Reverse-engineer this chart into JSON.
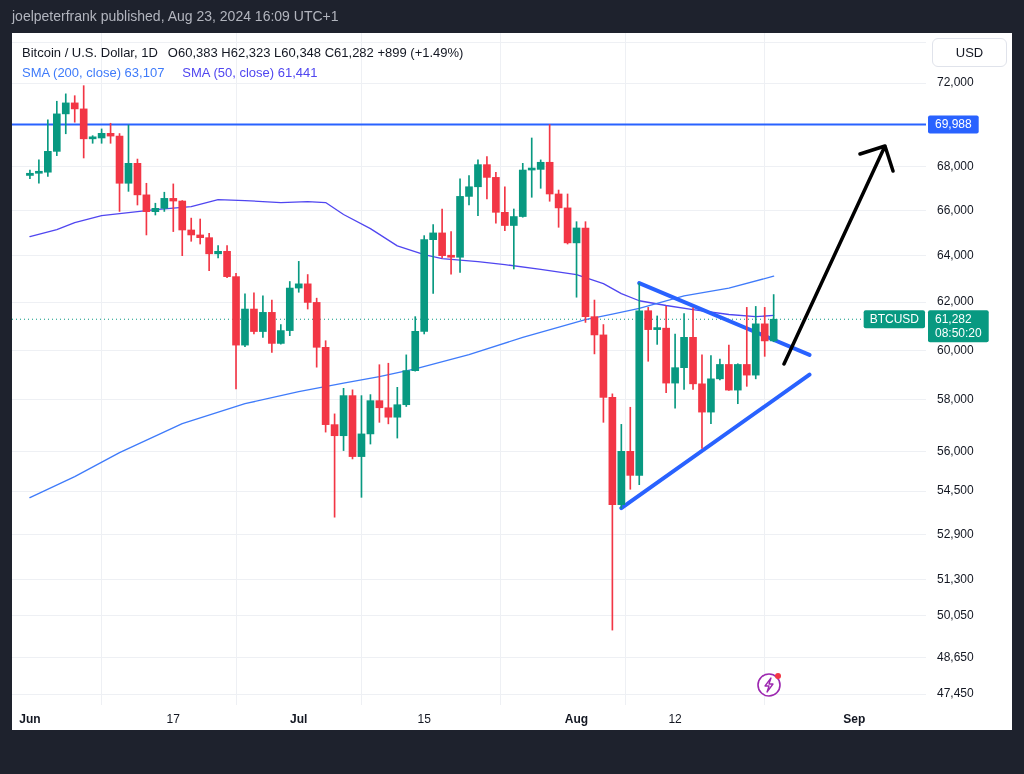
{
  "chart_data": {
    "type": "candlestick",
    "title": "Bitcoin / U.S. Dollar, 1D",
    "subtitle": "O60,383 H62,323 L60,348 C61,282 +899 (+1.49%)",
    "ylabel": "USD",
    "x": [
      "2024-06-01",
      "2024-06-02",
      "2024-06-03",
      "2024-06-04",
      "2024-06-05",
      "2024-06-06",
      "2024-06-07",
      "2024-06-08",
      "2024-06-09",
      "2024-06-10",
      "2024-06-11",
      "2024-06-12",
      "2024-06-13",
      "2024-06-14",
      "2024-06-15",
      "2024-06-16",
      "2024-06-17",
      "2024-06-18",
      "2024-06-19",
      "2024-06-20",
      "2024-06-21",
      "2024-06-22",
      "2024-06-23",
      "2024-06-24",
      "2024-06-25",
      "2024-06-26",
      "2024-06-27",
      "2024-06-28",
      "2024-06-29",
      "2024-06-30",
      "2024-07-01",
      "2024-07-02",
      "2024-07-03",
      "2024-07-04",
      "2024-07-05",
      "2024-07-06",
      "2024-07-07",
      "2024-07-08",
      "2024-07-09",
      "2024-07-10",
      "2024-07-11",
      "2024-07-12",
      "2024-07-13",
      "2024-07-14",
      "2024-07-15",
      "2024-07-16",
      "2024-07-17",
      "2024-07-18",
      "2024-07-19",
      "2024-07-20",
      "2024-07-21",
      "2024-07-22",
      "2024-07-23",
      "2024-07-24",
      "2024-07-25",
      "2024-07-26",
      "2024-07-27",
      "2024-07-28",
      "2024-07-29",
      "2024-07-30",
      "2024-07-31",
      "2024-08-01",
      "2024-08-02",
      "2024-08-03",
      "2024-08-04",
      "2024-08-05",
      "2024-08-06",
      "2024-08-07",
      "2024-08-08",
      "2024-08-09",
      "2024-08-10",
      "2024-08-11",
      "2024-08-12",
      "2024-08-13",
      "2024-08-14",
      "2024-08-15",
      "2024-08-16",
      "2024-08-17",
      "2024-08-18",
      "2024-08-19",
      "2024-08-20",
      "2024-08-21",
      "2024-08-22",
      "2024-08-23"
    ],
    "ohlc": [
      [
        67600,
        67850,
        67450,
        67700
      ],
      [
        67700,
        68320,
        67240,
        67750
      ],
      [
        67750,
        70210,
        67550,
        68720
      ],
      [
        68720,
        71110,
        68520,
        70500
      ],
      [
        70500,
        71470,
        69550,
        71030
      ],
      [
        71030,
        71380,
        70100,
        70740
      ],
      [
        70740,
        71870,
        68410,
        69310
      ],
      [
        69310,
        69460,
        69100,
        69350
      ],
      [
        69350,
        69780,
        69100,
        69570
      ],
      [
        69570,
        70050,
        69100,
        69440
      ],
      [
        69440,
        69560,
        65960,
        67240
      ],
      [
        67240,
        69970,
        66870,
        68160
      ],
      [
        68160,
        68360,
        66250,
        66710
      ],
      [
        66710,
        67240,
        64910,
        65950
      ],
      [
        65950,
        66330,
        65800,
        66100
      ],
      [
        66100,
        66830,
        65960,
        66550
      ],
      [
        66550,
        67210,
        65060,
        66430
      ],
      [
        66430,
        66450,
        64000,
        65130
      ],
      [
        65130,
        65660,
        64630,
        64910
      ],
      [
        64910,
        65620,
        64510,
        64790
      ],
      [
        64790,
        64980,
        63350,
        64080
      ],
      [
        64080,
        64440,
        63900,
        64190
      ],
      [
        64190,
        64440,
        63050,
        63090
      ],
      [
        63090,
        63230,
        58440,
        60210
      ],
      [
        60210,
        62350,
        60150,
        61710
      ],
      [
        61710,
        62400,
        60670,
        60770
      ],
      [
        60770,
        62270,
        60530,
        61570
      ],
      [
        61570,
        62090,
        59910,
        60280
      ],
      [
        60280,
        61060,
        60250,
        60810
      ],
      [
        60810,
        62880,
        60600,
        62600
      ],
      [
        62600,
        63750,
        62420,
        62780
      ],
      [
        62780,
        63180,
        61710,
        61990
      ],
      [
        61990,
        62170,
        59310,
        60120
      ],
      [
        60120,
        60390,
        56740,
        57030
      ],
      [
        57030,
        57450,
        53540,
        56600
      ],
      [
        56600,
        58460,
        56030,
        58170
      ],
      [
        58170,
        58400,
        55710,
        55800
      ],
      [
        55800,
        58170,
        54270,
        56670
      ],
      [
        56670,
        58210,
        56280,
        57970
      ],
      [
        57970,
        59410,
        57120,
        57690
      ],
      [
        57690,
        59470,
        57060,
        57320
      ],
      [
        57320,
        58500,
        56510,
        57810
      ],
      [
        57810,
        59810,
        57740,
        59170
      ],
      [
        59170,
        61390,
        59150,
        60780
      ],
      [
        60780,
        64880,
        60670,
        64700
      ],
      [
        64700,
        65370,
        62370,
        65000
      ],
      [
        65000,
        66070,
        63900,
        64000
      ],
      [
        64000,
        65060,
        63200,
        63930
      ],
      [
        63930,
        67440,
        63270,
        66640
      ],
      [
        66640,
        67590,
        66250,
        67080
      ],
      [
        67080,
        68320,
        65770,
        68100
      ],
      [
        68100,
        68470,
        66530,
        67510
      ],
      [
        67510,
        67740,
        65430,
        65920
      ],
      [
        65920,
        67080,
        65100,
        65330
      ],
      [
        65330,
        66070,
        63420,
        65730
      ],
      [
        65730,
        68160,
        65700,
        67850
      ],
      [
        67850,
        69350,
        66600,
        67880
      ],
      [
        67880,
        68320,
        67010,
        68210
      ],
      [
        68210,
        69988,
        66420,
        66750
      ],
      [
        66750,
        66930,
        65250,
        66120
      ],
      [
        66120,
        66750,
        64510,
        64560
      ],
      [
        64560,
        65500,
        62210,
        65220
      ],
      [
        65220,
        65500,
        61150,
        61390
      ],
      [
        61390,
        62090,
        59850,
        60630
      ],
      [
        60630,
        61060,
        57120,
        58100
      ],
      [
        58100,
        58240,
        49570,
        54000
      ],
      [
        54000,
        57040,
        53870,
        56000
      ],
      [
        56000,
        57710,
        54570,
        55090
      ],
      [
        55090,
        62810,
        54740,
        61640
      ],
      [
        61640,
        61780,
        59550,
        60850
      ],
      [
        60850,
        61420,
        60240,
        60910
      ],
      [
        60910,
        61820,
        58290,
        58670
      ],
      [
        58670,
        60660,
        57670,
        59290
      ],
      [
        59290,
        61520,
        58420,
        60530
      ],
      [
        60530,
        61760,
        58420,
        58640
      ],
      [
        58640,
        59810,
        56110,
        57520
      ],
      [
        57520,
        59780,
        57070,
        58840
      ],
      [
        58840,
        59640,
        58800,
        59420
      ],
      [
        59420,
        60210,
        58380,
        58390
      ],
      [
        58390,
        59450,
        57850,
        59420
      ],
      [
        59420,
        61780,
        58540,
        58990
      ],
      [
        58990,
        61820,
        58840,
        61090
      ],
      [
        61090,
        61780,
        59750,
        60383
      ],
      [
        60383,
        62323,
        60348,
        61282
      ]
    ],
    "colors": [
      "#089981",
      "#089981",
      "#089981",
      "#089981",
      "#089981",
      "#f23645",
      "#f23645",
      "#089981",
      "#089981",
      "#f23645",
      "#f23645",
      "#089981",
      "#f23645",
      "#f23645",
      "#089981",
      "#089981",
      "#f23645",
      "#f23645",
      "#f23645",
      "#f23645",
      "#f23645",
      "#089981",
      "#f23645",
      "#f23645",
      "#089981",
      "#f23645",
      "#089981",
      "#f23645",
      "#089981",
      "#089981",
      "#089981",
      "#f23645",
      "#f23645",
      "#f23645",
      "#f23645",
      "#089981",
      "#f23645",
      "#089981",
      "#089981",
      "#f23645",
      "#f23645",
      "#089981",
      "#089981",
      "#089981",
      "#089981",
      "#089981",
      "#f23645",
      "#f23645",
      "#089981",
      "#089981",
      "#089981",
      "#f23645",
      "#f23645",
      "#f23645",
      "#089981",
      "#089981",
      "#089981",
      "#089981",
      "#f23645",
      "#f23645",
      "#f23645",
      "#089981",
      "#f23645",
      "#f23645",
      "#f23645",
      "#f23645",
      "#089981",
      "#f23645",
      "#089981",
      "#f23645",
      "#089981",
      "#f23645",
      "#089981",
      "#089981",
      "#f23645",
      "#f23645",
      "#089981",
      "#089981",
      "#f23645",
      "#089981",
      "#f23645",
      "#089981",
      "#f23645",
      "#089981"
    ],
    "series": [
      {
        "name": "SMA (200, close) 63,107",
        "type": "line",
        "color": "#3f7bfa",
        "x": [
          "2024-06-01",
          "2024-06-06",
          "2024-06-11",
          "2024-06-18",
          "2024-06-25",
          "2024-07-01",
          "2024-07-06",
          "2024-07-10",
          "2024-07-14",
          "2024-07-20",
          "2024-07-26",
          "2024-08-02",
          "2024-08-05",
          "2024-08-08",
          "2024-08-13",
          "2024-08-18",
          "2024-08-23"
        ],
        "values": [
          54260,
          55040,
          55950,
          57070,
          57850,
          58330,
          58670,
          58930,
          59240,
          59820,
          60530,
          61270,
          61500,
          61740,
          62270,
          62600,
          63107
        ]
      },
      {
        "name": "SMA (50, close) 61,441",
        "type": "line",
        "color": "#5046f0",
        "x": [
          "2024-06-01",
          "2024-06-04",
          "2024-06-06",
          "2024-06-09",
          "2024-06-15",
          "2024-06-19",
          "2024-06-22",
          "2024-06-25",
          "2024-06-29",
          "2024-07-02",
          "2024-07-04",
          "2024-07-06",
          "2024-07-09",
          "2024-07-12",
          "2024-07-15",
          "2024-07-17",
          "2024-07-21",
          "2024-07-24",
          "2024-07-28",
          "2024-08-01",
          "2024-08-04",
          "2024-08-06",
          "2024-08-08",
          "2024-08-11",
          "2024-08-14",
          "2024-08-18",
          "2024-08-21",
          "2024-08-23"
        ],
        "values": [
          64840,
          65150,
          65460,
          65770,
          66040,
          66180,
          66490,
          66450,
          66360,
          66400,
          66360,
          65820,
          65190,
          64430,
          64040,
          63870,
          63740,
          63610,
          63400,
          63180,
          62790,
          62360,
          62060,
          61860,
          61690,
          61480,
          61390,
          61441
        ]
      },
      {
        "type": "line",
        "color": "#2962ff",
        "x": [
          "2024-08-08",
          "2024-08-27"
        ],
        "values": [
          62810,
          59810
        ]
      },
      {
        "type": "line",
        "color": "#2962ff",
        "x": [
          "2024-08-06",
          "2024-08-27"
        ],
        "values": [
          53870,
          59010
        ]
      }
    ],
    "xlim": [
      "2024-05-30",
      "2024-09-09"
    ],
    "xticks": [
      {
        "value": "2024-06-01",
        "label": "Jun"
      },
      {
        "value": "2024-06-17",
        "label": "17"
      },
      {
        "value": "2024-07-01",
        "label": "Jul"
      },
      {
        "value": "2024-07-15",
        "label": "15"
      },
      {
        "value": "2024-08-01",
        "label": "Aug"
      },
      {
        "value": "2024-08-12",
        "label": "12"
      },
      {
        "value": "2024-09-01",
        "label": "Sep"
      }
    ],
    "ylim": [
      47100,
      74500
    ],
    "yticks": [
      {
        "value": 74000,
        "label": null
      },
      {
        "value": 72000,
        "label": "72,000"
      },
      {
        "value": 70000,
        "label": null
      },
      {
        "value": 68000,
        "label": "68,000"
      },
      {
        "value": 66000,
        "label": "66,000"
      },
      {
        "value": 64000,
        "label": "64,000"
      },
      {
        "value": 62000,
        "label": "62,000"
      },
      {
        "value": 60000,
        "label": "60,000"
      },
      {
        "value": 58000,
        "label": "58,000"
      },
      {
        "value": 56000,
        "label": "56,000"
      },
      {
        "value": 54500,
        "label": "54,500"
      },
      {
        "value": 52900,
        "label": "52,900"
      },
      {
        "value": 51300,
        "label": "51,300"
      },
      {
        "value": 50050,
        "label": "50,050"
      },
      {
        "value": 48650,
        "label": "48,650"
      },
      {
        "value": 47450,
        "label": "47,450"
      }
    ],
    "log": true,
    "grid": true,
    "legend": "top left",
    "ref_lines": [
      {
        "axis": "y",
        "value": 69988,
        "label": "69,988",
        "color": "#2962ff"
      },
      {
        "axis": "y",
        "value": 61282,
        "label": "61,282",
        "color": "#089981",
        "line_style": "dotted"
      }
    ],
    "annotations": [
      "joelpeterfrank published, Aug 23, 2024 16:09 UTC+1",
      "BTCUSD",
      "08:50:20"
    ]
  }
}
